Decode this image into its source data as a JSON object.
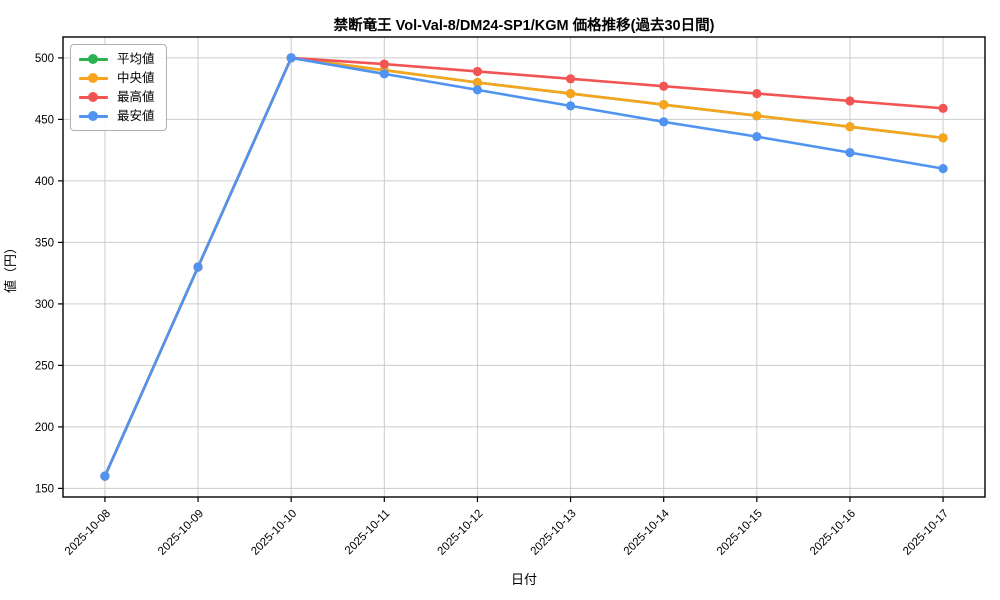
{
  "chart_data": {
    "type": "line",
    "title": "禁断竜王 Vol-Val-8/DM24-SP1/KGM 価格推移(過去30日間)",
    "xlabel": "日付",
    "ylabel": "値（円）",
    "grid": true,
    "legend_position": "upper left",
    "x": [
      "2025-10-08",
      "2025-10-09",
      "2025-10-10",
      "2025-10-11",
      "2025-10-12",
      "2025-10-13",
      "2025-10-14",
      "2025-10-15",
      "2025-10-16",
      "2025-10-17"
    ],
    "series": [
      {
        "key": "average",
        "name": "平均値",
        "color": "#2bb152",
        "values": [
          160,
          330,
          500,
          490,
          480,
          471,
          462,
          453,
          444,
          435
        ]
      },
      {
        "key": "median",
        "name": "中央値",
        "color": "#f8a41c",
        "values": [
          160,
          330,
          500,
          490,
          480,
          471,
          462,
          453,
          444,
          435
        ]
      },
      {
        "key": "max",
        "name": "最高値",
        "color": "#f25454",
        "values": [
          160,
          330,
          500,
          495,
          489,
          483,
          477,
          471,
          465,
          459
        ]
      },
      {
        "key": "min",
        "name": "最安値",
        "color": "#5093f0",
        "values": [
          160,
          330,
          500,
          487,
          474,
          461,
          448,
          436,
          423,
          410
        ]
      }
    ],
    "yticks": [
      150,
      200,
      250,
      300,
      350,
      400,
      450,
      500
    ],
    "ylim": [
      143,
      517
    ]
  }
}
